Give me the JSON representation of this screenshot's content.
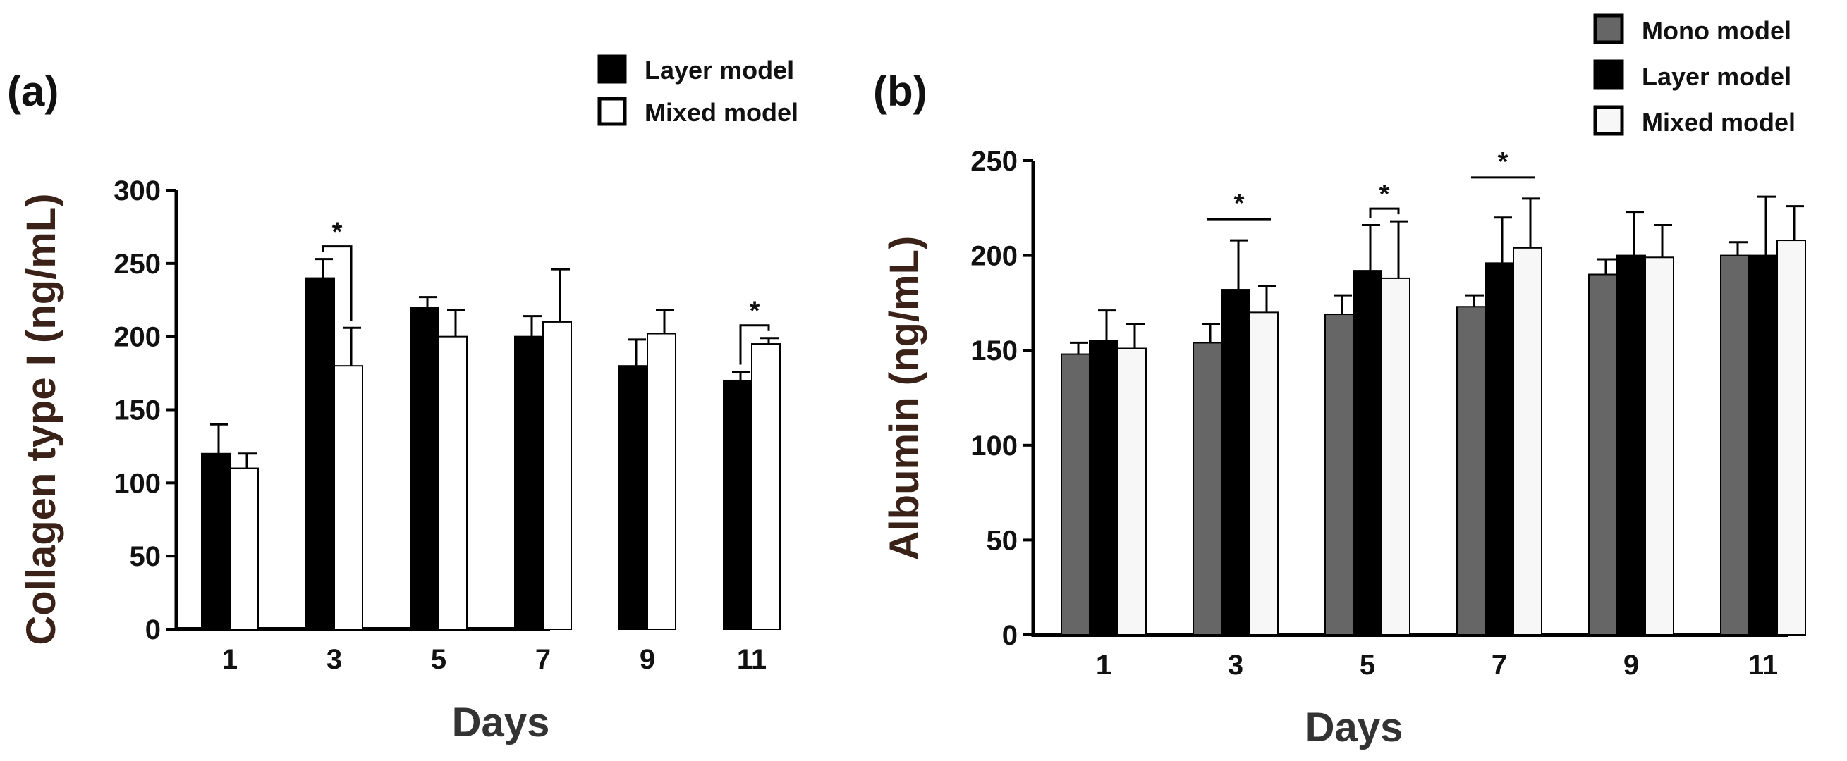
{
  "chart_data": [
    {
      "type": "bar",
      "panel_label": "(a)",
      "ylabel": "Collagen type I (ng/mL)",
      "xlabel": "Days",
      "categories": [
        "1",
        "3",
        "5",
        "7",
        "9",
        "11"
      ],
      "ylim": [
        0,
        300
      ],
      "yticks": [
        "0",
        "50",
        "100",
        "150",
        "200",
        "250",
        "300"
      ],
      "grid": false,
      "legend_position": "top-right",
      "series": [
        {
          "name": "Layer model",
          "fill": "#000000",
          "values": [
            120,
            240,
            220,
            200,
            180,
            170
          ],
          "errors": [
            20,
            13,
            7,
            14,
            18,
            6
          ]
        },
        {
          "name": "Mixed model",
          "fill": "#ffffff",
          "values": [
            110,
            180,
            200,
            210,
            202,
            195
          ],
          "errors": [
            10,
            26,
            18,
            36,
            16,
            4
          ]
        }
      ],
      "significance": [
        {
          "label": "*",
          "category": "3",
          "style": "bracket"
        },
        {
          "label": "*",
          "category": "11",
          "style": "bracket"
        }
      ]
    },
    {
      "type": "bar",
      "panel_label": "(b)",
      "ylabel": "Albumin (ng/mL)",
      "xlabel": "Days",
      "categories": [
        "1",
        "3",
        "5",
        "7",
        "9",
        "11"
      ],
      "ylim": [
        0,
        250
      ],
      "yticks": [
        "0",
        "50",
        "100",
        "150",
        "200",
        "250"
      ],
      "grid": false,
      "legend_position": "top-right",
      "series": [
        {
          "name": "Mono model",
          "fill": "#666666",
          "values": [
            148,
            154,
            169,
            173,
            190,
            200
          ],
          "errors": [
            6,
            10,
            10,
            6,
            8,
            7
          ]
        },
        {
          "name": "Layer model",
          "fill": "#000000",
          "values": [
            155,
            182,
            192,
            196,
            200,
            200
          ],
          "errors": [
            16,
            26,
            24,
            24,
            23,
            31
          ]
        },
        {
          "name": "Mixed model",
          "fill": "#f7f7f7",
          "values": [
            151,
            170,
            188,
            204,
            199,
            208
          ],
          "errors": [
            13,
            14,
            30,
            26,
            17,
            18
          ]
        }
      ],
      "significance": [
        {
          "label": "*",
          "category": "3",
          "style": "line"
        },
        {
          "label": "*",
          "category": "5",
          "style": "bracket"
        },
        {
          "label": "*",
          "category": "7",
          "style": "line"
        }
      ]
    }
  ]
}
